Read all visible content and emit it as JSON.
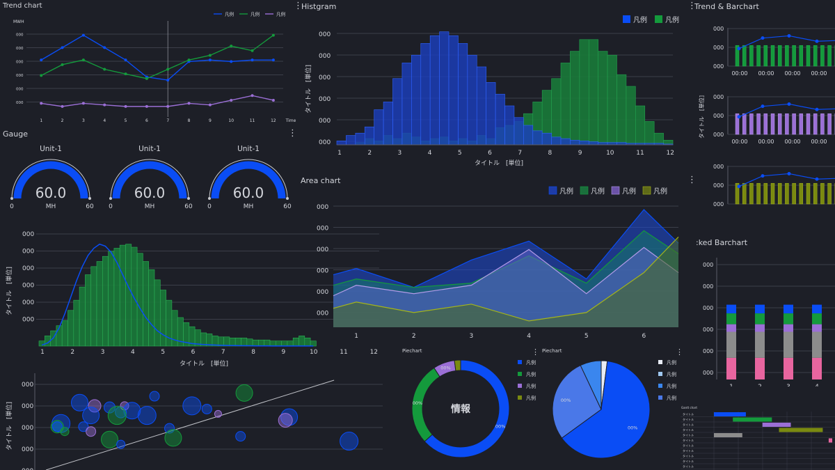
{
  "colors": {
    "blue": "#0a4df5",
    "green": "#149a3c",
    "purple": "#9b6fd6",
    "olive": "#7a8a10",
    "gray": "#8c8c8c",
    "pink": "#e8659f",
    "lightblue": "#9fc8f0",
    "midblue": "#3a86ee",
    "white": "#e8ecf5"
  },
  "menu_icon": "kebab-menu-icon",
  "trend": {
    "title": "Trend chart",
    "legend": [
      "凡例",
      "凡例",
      "凡例"
    ],
    "y_unit": "MWH",
    "y_ticks": [
      "000",
      "000",
      "000",
      "000",
      "000",
      "000"
    ],
    "x_label": "Time",
    "chart_data": {
      "type": "line",
      "x": [
        1,
        2,
        3,
        4,
        5,
        6,
        7,
        8,
        9,
        10,
        11,
        12
      ],
      "series": [
        {
          "name": "凡例",
          "values": [
            80,
            88,
            96,
            88,
            80,
            69,
            67,
            79,
            80,
            79,
            80,
            80
          ]
        },
        {
          "name": "凡例",
          "values": [
            70,
            77,
            80,
            74,
            71,
            68,
            74,
            80,
            83,
            89,
            86,
            96
          ]
        },
        {
          "name": "凡例",
          "values": [
            52,
            50,
            52,
            51,
            50,
            50,
            50,
            52,
            51,
            54,
            57,
            54
          ]
        }
      ],
      "ylim": [
        45,
        103
      ],
      "cursor_x": 7
    }
  },
  "gauge": {
    "title": "Gauge",
    "items": [
      {
        "unit": "Unit-1",
        "value": "60.0",
        "sub": "MH",
        "min": "0",
        "max": "60",
        "level": 1.0
      },
      {
        "unit": "Unit-1",
        "value": "60.0",
        "sub": "MH",
        "min": "0",
        "max": "60",
        "level": 1.0
      },
      {
        "unit": "Unit-1",
        "value": "60.0",
        "sub": "MH",
        "min": "0",
        "max": "60",
        "level": 1.0
      }
    ]
  },
  "histogram": {
    "title": "Histgram",
    "legend": [
      "凡例",
      "凡例"
    ],
    "y_ticks": [
      "000",
      "000",
      "000",
      "000",
      "000",
      "000"
    ],
    "ylabel": "タイトル　[単位]",
    "xlabel": "タイトル　[単位]",
    "chart_data": {
      "type": "bar",
      "x_ticks": [
        1,
        2,
        3,
        4,
        5,
        6,
        7,
        8,
        9,
        10,
        11,
        12
      ],
      "series": [
        {
          "name": "凡例",
          "values": [
            0.5,
            1.2,
            1.5,
            2.3,
            4.5,
            5.5,
            8.5,
            10.5,
            11.5,
            13.0,
            14.0,
            14.5,
            14.0,
            13.0,
            11.5,
            10.0,
            8.0,
            6.5,
            5.0,
            3.5,
            2.5,
            1.8,
            1.5,
            1.0,
            0.8,
            0.6,
            0.5,
            0.4,
            0.3,
            0.3,
            0.3,
            0.2,
            0.2,
            0.2,
            0.2,
            0.1
          ]
        },
        {
          "name": "凡例",
          "values": [
            0,
            0,
            0.3,
            0.8,
            0.5,
            1.2,
            0.8,
            1.5,
            1.0,
            0.5,
            0.8,
            1.0,
            0.5,
            0.8,
            0.5,
            1.2,
            0.8,
            2.2,
            2.5,
            3.0,
            4.0,
            5.5,
            7.0,
            8.5,
            10.5,
            12.0,
            13.5,
            13.5,
            12.0,
            11.5,
            9.0,
            7.5,
            5.0,
            3.0,
            1.5,
            0.6
          ]
        }
      ],
      "ylim": [
        0,
        15
      ]
    }
  },
  "area": {
    "title": "Area chart",
    "legend": [
      "凡例",
      "凡例",
      "凡例",
      "凡例"
    ],
    "y_ticks": [
      "000",
      "000",
      "000",
      "000",
      "000",
      "000"
    ],
    "chart_data": {
      "type": "area",
      "x": [
        0.6,
        1,
        2,
        3,
        4,
        5,
        6,
        6.6
      ],
      "x_ticks": [
        1,
        2,
        3,
        4,
        5,
        6
      ],
      "series": [
        {
          "name": "凡例",
          "values": [
            25,
            28,
            19,
            32,
            41,
            23,
            56,
            40
          ]
        },
        {
          "name": "凡例",
          "values": [
            20,
            23,
            19,
            21,
            34,
            21,
            46,
            35
          ]
        },
        {
          "name": "凡例",
          "values": [
            15,
            20,
            16,
            20,
            37,
            16,
            38,
            26
          ]
        },
        {
          "name": "凡例",
          "values": [
            9,
            12,
            7,
            11,
            3,
            7,
            26,
            43
          ]
        }
      ],
      "ylim": [
        0,
        58
      ]
    }
  },
  "trendbar": {
    "title": "Trend & Barchart",
    "ylabel": "タイトル　[単位]",
    "panels": [
      {
        "y_ticks": [
          "000",
          "000",
          "000"
        ],
        "x_labels": [
          "00:00",
          "00:00",
          "00:00",
          "00:00"
        ]
      },
      {
        "y_ticks": [
          "000",
          "000",
          "000"
        ],
        "x_labels": [
          "00:00",
          "00:00",
          "00:00",
          "00:00"
        ]
      },
      {
        "y_ticks": [
          "000",
          "000",
          "000"
        ],
        "x_labels": []
      }
    ],
    "chart_data": {
      "type": "bar",
      "bar_values": [
        0.65,
        0.65,
        0.65,
        0.65,
        0.65,
        0.65,
        0.65,
        0.65,
        0.65,
        0.65,
        0.65,
        0.65,
        0.65,
        0.65,
        0.65
      ],
      "line_values": [
        0.55,
        0.88,
        0.95,
        0.78
      ],
      "ylim": [
        0,
        1.2
      ]
    }
  },
  "density": {
    "ylabel": "タイトル　[単位]",
    "xlabel": "タイトル　[単位]",
    "y_ticks": [
      "000",
      "000",
      "000",
      "000",
      "000",
      "000"
    ],
    "chart_data": {
      "type": "bar",
      "x_ticks": [
        1,
        2,
        3,
        4,
        5,
        6,
        7,
        8,
        9,
        10,
        11,
        12
      ],
      "values": [
        0.5,
        1.0,
        1.5,
        2.0,
        2.5,
        3.5,
        4.5,
        5.8,
        7.0,
        7.8,
        8.3,
        8.8,
        9.3,
        9.6,
        9.9,
        10.0,
        9.7,
        9.1,
        8.3,
        7.5,
        6.5,
        5.5,
        4.5,
        3.5,
        2.8,
        2.3,
        1.9,
        1.6,
        1.3,
        1.2,
        1.0,
        0.9,
        0.9,
        0.8,
        0.8,
        0.8,
        0.7,
        0.6,
        0.6,
        0.6,
        0.5,
        0.5,
        0.5,
        0.5,
        0.8,
        1.0,
        0.8,
        0.5
      ],
      "curve": [
        0.1,
        0.3,
        0.8,
        1.8,
        3.2,
        4.8,
        6.4,
        7.8,
        8.9,
        9.6,
        10.0,
        9.8,
        9.2,
        8.2,
        7.0,
        5.8,
        4.7,
        3.7,
        2.8,
        2.1,
        1.5,
        1.1,
        0.8,
        0.6,
        0.45,
        0.35,
        0.25,
        0.2,
        0.15,
        0.12,
        0.1,
        0.08,
        0.06,
        0.05,
        0.04,
        0.03,
        0.03,
        0.02,
        0.02,
        0.02,
        0.01,
        0.01,
        0.01,
        0.01,
        0.01,
        0.01,
        0.01,
        0.01
      ],
      "ylim": [
        0,
        11
      ]
    }
  },
  "bubble": {
    "ylabel": "タイトル　[単位]",
    "y_ticks": [
      "000",
      "000",
      "000",
      "000",
      "000"
    ],
    "chart_data": {
      "type": "scatter",
      "points": [
        {
          "x": 1.2,
          "y": 4.8,
          "r": 12,
          "c": "blue"
        },
        {
          "x": 1.6,
          "y": 4.6,
          "r": 9,
          "c": "purple"
        },
        {
          "x": 2.0,
          "y": 4.5,
          "r": 8,
          "c": "blue"
        },
        {
          "x": 2.3,
          "y": 4.2,
          "r": 8,
          "c": "blue"
        },
        {
          "x": 2.4,
          "y": 4.6,
          "r": 6,
          "c": "purple"
        },
        {
          "x": 2.6,
          "y": 4.3,
          "r": 12,
          "c": "blue"
        },
        {
          "x": 2.2,
          "y": 4.0,
          "r": 13,
          "c": "green"
        },
        {
          "x": 1.5,
          "y": 4.0,
          "r": 12,
          "c": "blue"
        },
        {
          "x": 0.7,
          "y": 3.5,
          "r": 13,
          "c": "blue"
        },
        {
          "x": 0.6,
          "y": 3.3,
          "r": 9,
          "c": "green"
        },
        {
          "x": 0.6,
          "y": 3.3,
          "r": 7,
          "c": "blue"
        },
        {
          "x": 0.8,
          "y": 3.0,
          "r": 6,
          "c": "green"
        },
        {
          "x": 1.3,
          "y": 3.3,
          "r": 7,
          "c": "blue"
        },
        {
          "x": 1.5,
          "y": 3.0,
          "r": 7,
          "c": "purple"
        },
        {
          "x": 2.0,
          "y": 2.5,
          "r": 12,
          "c": "green"
        },
        {
          "x": 2.3,
          "y": 2.2,
          "r": 6,
          "c": "blue"
        },
        {
          "x": 3.0,
          "y": 4.0,
          "r": 13,
          "c": "blue"
        },
        {
          "x": 3.2,
          "y": 5.2,
          "r": 7,
          "c": "blue"
        },
        {
          "x": 3.6,
          "y": 3.2,
          "r": 7,
          "c": "blue"
        },
        {
          "x": 3.7,
          "y": 2.6,
          "r": 12,
          "c": "green"
        },
        {
          "x": 4.2,
          "y": 4.6,
          "r": 13,
          "c": "blue"
        },
        {
          "x": 4.6,
          "y": 4.4,
          "r": 7,
          "c": "blue"
        },
        {
          "x": 4.9,
          "y": 4.1,
          "r": 5,
          "c": "purple"
        },
        {
          "x": 5.6,
          "y": 5.4,
          "r": 12,
          "c": "green"
        },
        {
          "x": 6.8,
          "y": 3.9,
          "r": 12,
          "c": "blue"
        },
        {
          "x": 6.7,
          "y": 3.7,
          "r": 10,
          "c": "purple"
        },
        {
          "x": 5.5,
          "y": 2.7,
          "r": 7,
          "c": "blue"
        },
        {
          "x": 8.4,
          "y": 2.4,
          "r": 13,
          "c": "blue"
        }
      ],
      "trend_line": [
        [
          0.3,
          0.6
        ],
        [
          8.0,
          6.2
        ]
      ],
      "xlim": [
        0,
        9.3
      ],
      "ylim": [
        0.6,
        6.2
      ]
    }
  },
  "pie1": {
    "title": "Piechart",
    "center_label": "情報",
    "legend": [
      "凡例",
      "凡例",
      "凡例",
      "凡例"
    ],
    "chart_data": {
      "type": "pie",
      "slices": [
        {
          "name": "凡例",
          "value": 62,
          "label": "00%",
          "color": "blue"
        },
        {
          "name": "凡例",
          "value": 27,
          "label": "00%",
          "color": "green"
        },
        {
          "name": "凡例",
          "value": 7,
          "label": "00%",
          "color": "purple"
        },
        {
          "name": "凡例",
          "value": 2,
          "label": "",
          "color": "olive"
        }
      ]
    }
  },
  "pie2": {
    "title": "Piechart",
    "legend": [
      "凡例",
      "凡例",
      "凡例",
      "凡例"
    ],
    "chart_data": {
      "type": "pie",
      "slices": [
        {
          "name": "凡例",
          "value": 2,
          "label": "",
          "color": "white"
        },
        {
          "name": "凡例",
          "value": 63,
          "label": "00%",
          "color": "blue"
        },
        {
          "name": "凡例",
          "value": 28,
          "label": "00%",
          "color": "midblue2"
        },
        {
          "name": "凡例",
          "value": 7,
          "label": "",
          "color": "midblue"
        }
      ]
    }
  },
  "stacked": {
    "title": ":ked Barchart",
    "y_ticks": [
      "000",
      "000",
      "000",
      "000",
      "000",
      "000"
    ],
    "chart_data": {
      "type": "bar",
      "categories": [
        "1",
        "2",
        "3",
        "4"
      ],
      "series": [
        {
          "name": "pink",
          "values": [
            1,
            1,
            1,
            1
          ]
        },
        {
          "name": "gray",
          "values": [
            1.2,
            1.2,
            1.2,
            1.2
          ]
        },
        {
          "name": "purple",
          "values": [
            0.35,
            0.35,
            0.35,
            0.35
          ]
        },
        {
          "name": "green",
          "values": [
            0.5,
            0.5,
            0.5,
            0.5
          ]
        },
        {
          "name": "blue",
          "values": [
            0.4,
            0.4,
            0.4,
            0.4
          ]
        }
      ],
      "ylim": [
        0,
        5.3
      ]
    }
  },
  "gantt": {
    "title": "Gantt chart",
    "rows": [
      "タイトル",
      "タイトル",
      "タイトル",
      "タイトル",
      "タイトル",
      "タイトル",
      "タイトル",
      "タイトル",
      "タイトル",
      "タイトル",
      "タイトル"
    ],
    "chart_data": {
      "type": "bar",
      "tasks": [
        {
          "row": 0,
          "start": 0.0,
          "end": 0.27,
          "color": "blue"
        },
        {
          "row": 1,
          "start": 0.16,
          "end": 0.49,
          "color": "green"
        },
        {
          "row": 2,
          "start": 0.41,
          "end": 0.65,
          "color": "purple"
        },
        {
          "row": 3,
          "start": 0.55,
          "end": 0.92,
          "color": "olive"
        },
        {
          "row": 4,
          "start": 0.0,
          "end": 0.24,
          "color": "gray"
        },
        {
          "row": 5,
          "start": 0.97,
          "end": 1.0,
          "color": "pink"
        }
      ]
    }
  }
}
